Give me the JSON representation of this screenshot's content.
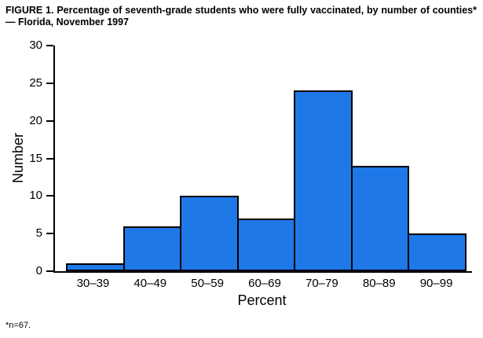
{
  "chart_data": {
    "type": "bar",
    "title": "FIGURE 1. Percentage of seventh-grade students who were fully vaccinated, by number of counties* — Florida, November 1997",
    "categories": [
      "30–39",
      "40–49",
      "50–59",
      "60–69",
      "70–79",
      "80–89",
      "90–99"
    ],
    "values": [
      1,
      6,
      10,
      7,
      24,
      14,
      5
    ],
    "xlabel": "Percent",
    "ylabel": "Number",
    "ylim": [
      0,
      30
    ],
    "yticks": [
      0,
      5,
      10,
      15,
      20,
      25,
      30
    ],
    "grid": false,
    "legend": "none",
    "bar_color": "#1E78E8",
    "bar_border_color": "#000000",
    "footnote": "*n=67."
  }
}
